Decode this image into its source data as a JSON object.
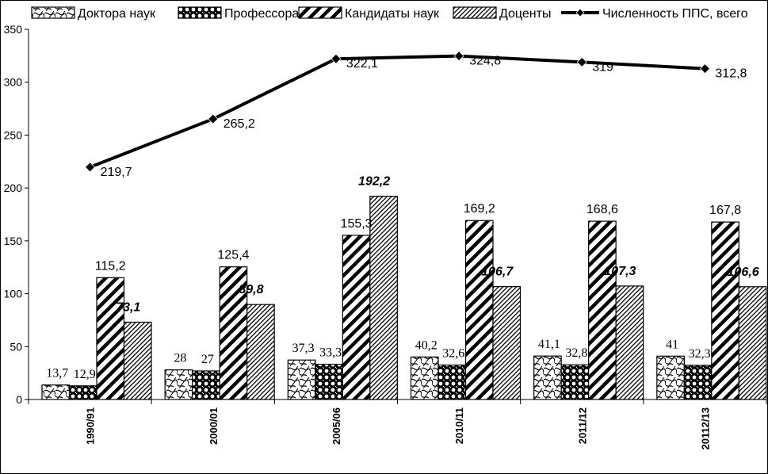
{
  "chart_data": {
    "type": "bar",
    "categories": [
      "1990/91",
      "2000/01",
      "2005/06",
      "2010/11",
      "2011/12",
      "20112/13"
    ],
    "series": [
      {
        "name": "Доктора наук",
        "values": [
          13.7,
          28,
          37.3,
          40.2,
          41.1,
          41
        ],
        "labels": [
          "13,7",
          "28",
          "37,3",
          "40,2",
          "41,1",
          "41"
        ],
        "pattern": "wave"
      },
      {
        "name": "Профессора",
        "values": [
          12.9,
          27,
          33.3,
          32.6,
          32.8,
          32.3
        ],
        "labels": [
          "12,9",
          "27",
          "33,3",
          "32,6",
          "32,8",
          "32,3"
        ],
        "pattern": "dots"
      },
      {
        "name": "Кандидаты наук",
        "values": [
          115.2,
          125.4,
          155.3,
          169.2,
          168.6,
          167.8
        ],
        "labels": [
          "115,2",
          "125,4",
          "155,3",
          "169,2",
          "168,6",
          "167,8"
        ],
        "pattern": "wide-diagonal"
      },
      {
        "name": "Доценты",
        "values": [
          73.1,
          89.8,
          192.2,
          106.7,
          107.3,
          106.6
        ],
        "labels": [
          "73,1",
          "89,8",
          "192,2",
          "106,7",
          "107,3",
          "106,6"
        ],
        "pattern": "thin-diagonal"
      }
    ],
    "line_series": {
      "name": "Численность ППС, всего",
      "values": [
        219.7,
        265.2,
        322.1,
        324.8,
        319,
        312.8
      ],
      "labels": [
        "219,7",
        "265,2",
        "322,1",
        "324,8",
        "319",
        "312,8"
      ]
    },
    "ylim": [
      0,
      350
    ],
    "yticks": [
      0,
      50,
      100,
      150,
      200,
      250,
      300,
      350
    ],
    "grid": false,
    "legend_position": "top"
  }
}
